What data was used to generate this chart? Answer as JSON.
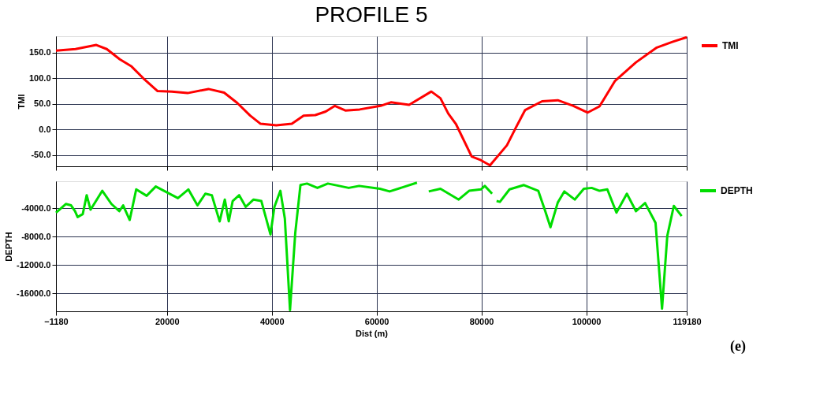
{
  "chart_data": [
    {
      "type": "line",
      "title": "PROFILE 5",
      "ylabel": "TMI",
      "xlim": [
        -1180,
        119180
      ],
      "ylim": [
        -72,
        182
      ],
      "xticks": [
        -1180,
        20000,
        40000,
        60000,
        80000,
        100000,
        119180
      ],
      "yticks": [
        {
          "value": -50,
          "label": "-50.0"
        },
        {
          "value": 0,
          "label": "0.0"
        },
        {
          "value": 50,
          "label": "50.0"
        },
        {
          "value": 100,
          "label": "100.0"
        },
        {
          "value": 150,
          "label": "150.0"
        }
      ],
      "tick_labels": "y",
      "grid": true,
      "legend": "right",
      "line_style": "solid",
      "marker": "none",
      "series": [
        {
          "name": "TMI",
          "color": "#ff0000",
          "x": [
            -1180,
            2540,
            6520,
            8510,
            11000,
            13240,
            15480,
            18210,
            20950,
            23930,
            27910,
            30900,
            33390,
            35870,
            37860,
            40850,
            43830,
            46070,
            48310,
            50300,
            52040,
            54030,
            56760,
            60750,
            62730,
            66210,
            70440,
            72180,
            73680,
            75170,
            78150,
            79890,
            81640,
            84870,
            86600,
            88350,
            91580,
            94570,
            97550,
            100290,
            102530,
            105510,
            109490,
            113470,
            116450,
            119180
          ],
          "values": [
            154,
            157,
            165,
            157,
            137,
            123,
            100,
            75,
            74,
            71,
            79,
            72,
            52,
            27,
            11,
            8,
            11,
            27,
            28,
            35,
            46,
            37,
            39,
            46,
            53,
            48,
            74,
            61,
            31,
            10,
            -53,
            -60,
            -70,
            -31,
            4,
            38,
            55,
            57,
            46,
            33,
            45,
            95,
            131,
            160,
            171,
            180
          ]
        }
      ]
    },
    {
      "type": "line",
      "xlabel": "Dist (m)",
      "ylabel": "DEPTH",
      "xlim": [
        -1180,
        119180
      ],
      "ylim": [
        -18500,
        -200
      ],
      "xticks": [
        -1180,
        20000,
        40000,
        60000,
        80000,
        100000,
        119180
      ],
      "yticks": [
        {
          "value": -16000,
          "label": "-16000.0"
        },
        {
          "value": -12000,
          "label": "-12000.0"
        },
        {
          "value": -8000,
          "label": "-8000.0"
        },
        {
          "value": -4000,
          "label": "-4000.0"
        }
      ],
      "grid": true,
      "legend": "right",
      "line_style": "solid",
      "marker": "none",
      "annotations": [
        "(e)"
      ],
      "series": [
        {
          "name": "DEPTH",
          "color": "#00dd00",
          "x": [
            -1180,
            700,
            1700,
            2450,
            2950,
            3930,
            4680,
            5420,
            7660,
            9400,
            10900,
            11640,
            12890,
            14130,
            16120,
            17860,
            22090,
            24080,
            25820,
            27320,
            28560,
            30050,
            31040,
            31790,
            32540,
            33780,
            35030,
            36520,
            38010,
            39750,
            40500,
            41640,
            42490,
            43480,
            44480,
            45470,
            46720,
            48710,
            50700,
            54680,
            56670,
            60650,
            62490,
            67710,
            68800,
            69950,
            72190,
            75670,
            77660,
            79900,
            80650,
            82040,
            82500,
            82890,
            83530,
            85370,
            88110,
            90850,
            92090,
            93180,
            94580,
            95820,
            97810,
            99550,
            101040,
            102540,
            104030,
            105770,
            107760,
            109500,
            111240,
            113230,
            114470,
            115470,
            116720,
            118210
          ],
          "values": [
            -4610,
            -3390,
            -3590,
            -4410,
            -5230,
            -4820,
            -2160,
            -4200,
            -1540,
            -3390,
            -4410,
            -3590,
            -5640,
            -1340,
            -2240,
            -930,
            -2570,
            -1340,
            -3590,
            -1950,
            -2160,
            -5840,
            -2770,
            -5840,
            -2980,
            -2160,
            -3800,
            -2770,
            -2980,
            -7680,
            -3800,
            -1540,
            -5430,
            -18330,
            -7480,
            -730,
            -520,
            -1130,
            -520,
            -1130,
            -850,
            -1260,
            -1630,
            -400,
            null,
            -1630,
            -1260,
            -2770,
            -1540,
            -1340,
            -850,
            -1950,
            null,
            -2980,
            -3100,
            -1340,
            -730,
            -1540,
            -4200,
            -6660,
            -3180,
            -1630,
            -2770,
            -1260,
            -1130,
            -1540,
            -1340,
            -4610,
            -1950,
            -4410,
            -3260,
            -6050,
            -18120,
            -7890,
            -3670,
            -5100
          ]
        }
      ]
    }
  ]
}
